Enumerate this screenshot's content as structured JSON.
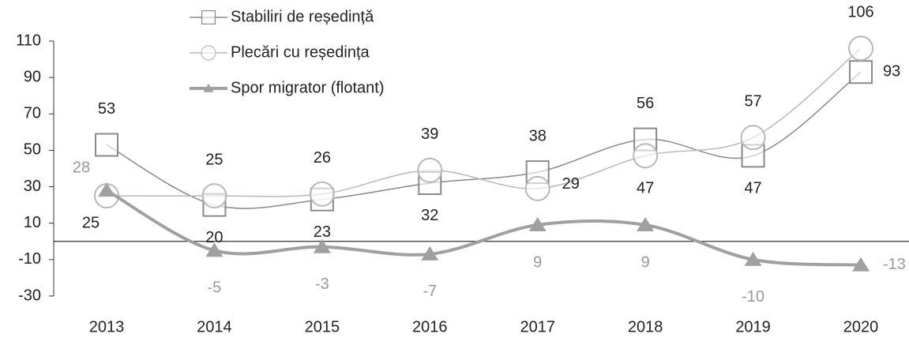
{
  "chart_data": {
    "type": "line",
    "categories": [
      "2013",
      "2014",
      "2015",
      "2016",
      "2017",
      "2018",
      "2019",
      "2020"
    ],
    "series": [
      {
        "name": "Stabiliri de reședință",
        "color": "#8a8a8a",
        "marker": "square",
        "values": [
          53,
          20,
          23,
          32,
          38,
          56,
          47,
          93
        ]
      },
      {
        "name": "Plecări cu reședința",
        "color": "#b8b8b8",
        "marker": "circle",
        "values": [
          25,
          25,
          26,
          39,
          29,
          47,
          57,
          106
        ]
      },
      {
        "name": "Spor migrator (flotant)",
        "color": "#a0a0a0",
        "marker": "triangle",
        "values": [
          28,
          -5,
          -3,
          -7,
          9,
          9,
          -10,
          -13
        ]
      }
    ],
    "ylim": [
      -30,
      110
    ],
    "yticks": [
      -30,
      -10,
      10,
      30,
      50,
      70,
      90,
      110
    ]
  }
}
